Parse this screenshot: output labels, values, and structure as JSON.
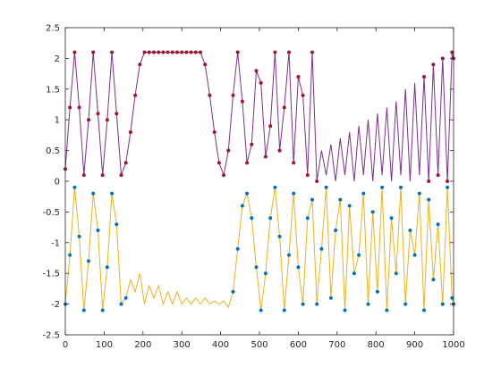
{
  "chart_data": {
    "type": "line",
    "title": "",
    "xlabel": "",
    "ylabel": "",
    "xlim": [
      0,
      1000
    ],
    "ylim": [
      -2.5,
      2.5
    ],
    "grid": false,
    "legend": "none",
    "xticks": [
      0,
      100,
      200,
      300,
      400,
      500,
      600,
      700,
      800,
      900,
      1000
    ],
    "xtick_labels": [
      "0",
      "100",
      "200",
      "300",
      "400",
      "500",
      "600",
      "700",
      "800",
      "900",
      "1000"
    ],
    "yticks": [
      2.5,
      2,
      1.5,
      1,
      0.5,
      0,
      -0.5,
      -1,
      -1.5,
      -2,
      -2.5
    ],
    "ytick_labels": [
      "2.5",
      "2",
      "1.5",
      "1",
      "0.5",
      "0",
      "-0.5",
      "-1",
      "-1.5",
      "-2",
      "-2.5"
    ],
    "colors": {
      "upper_line": "#7e2f8e",
      "upper_markers": "#a2142f",
      "lower_line": "#edb120",
      "lower_markers": "#0072bd",
      "axes": "#262626"
    },
    "series": [
      {
        "style": "line",
        "color": "#7e2f8e",
        "x": [
          0,
          12,
          24,
          36,
          48,
          60,
          72,
          84,
          96,
          108,
          120,
          132,
          144,
          156,
          168,
          180,
          192,
          204,
          216,
          228,
          240,
          252,
          264,
          276,
          288,
          300,
          312,
          324,
          336,
          348,
          360,
          372,
          384,
          396,
          408,
          420,
          432,
          444,
          456,
          468,
          480,
          492,
          504,
          516,
          528,
          540,
          552,
          564,
          576,
          588,
          600,
          612,
          624,
          636,
          648,
          660,
          672,
          684,
          696,
          708,
          720,
          732,
          744,
          756,
          768,
          780,
          792,
          804,
          816,
          828,
          840,
          852,
          864,
          876,
          888,
          900,
          912,
          924,
          936,
          948,
          960,
          972,
          984,
          996,
          1000
        ],
        "y": [
          0.2,
          1.2,
          2.1,
          1.2,
          0.1,
          1.0,
          2.1,
          1.1,
          0.1,
          1.0,
          2.1,
          1.1,
          0.1,
          0.3,
          0.8,
          1.4,
          1.9,
          2.1,
          2.1,
          2.1,
          2.1,
          2.1,
          2.1,
          2.1,
          2.1,
          2.1,
          2.1,
          2.1,
          2.1,
          2.1,
          1.9,
          1.4,
          0.8,
          0.3,
          0.1,
          0.5,
          1.4,
          2.1,
          1.3,
          0.3,
          0.6,
          1.8,
          1.6,
          0.4,
          0.9,
          2.1,
          0.5,
          1.2,
          2.1,
          0.3,
          1.7,
          1.4,
          0.1,
          2.1,
          0.0,
          0.5,
          0.1,
          0.6,
          0.0,
          0.7,
          0.1,
          0.8,
          0.0,
          0.9,
          0.1,
          1.0,
          0.0,
          1.1,
          0.1,
          1.2,
          0.0,
          1.3,
          0.1,
          1.5,
          0.0,
          1.6,
          0.1,
          1.7,
          0.0,
          1.9,
          0.1,
          2.0,
          0.0,
          2.1,
          2.0
        ]
      },
      {
        "style": "markers",
        "color": "#a2142f",
        "x": [
          0,
          12,
          24,
          36,
          48,
          60,
          72,
          84,
          96,
          108,
          120,
          132,
          144,
          156,
          168,
          180,
          192,
          204,
          216,
          228,
          240,
          252,
          264,
          276,
          288,
          300,
          312,
          324,
          336,
          348,
          360,
          372,
          384,
          396,
          408,
          420,
          432,
          444,
          456,
          468,
          480,
          492,
          504,
          516,
          528,
          540,
          552,
          564,
          576,
          588,
          600,
          612,
          624,
          636,
          648,
          924,
          936,
          948,
          960,
          972,
          984,
          996,
          1000
        ],
        "y": [
          0.2,
          1.2,
          2.1,
          1.2,
          0.1,
          1.0,
          2.1,
          1.1,
          0.1,
          1.0,
          2.1,
          1.1,
          0.1,
          0.3,
          0.8,
          1.4,
          1.9,
          2.1,
          2.1,
          2.1,
          2.1,
          2.1,
          2.1,
          2.1,
          2.1,
          2.1,
          2.1,
          2.1,
          2.1,
          2.1,
          1.9,
          1.4,
          0.8,
          0.3,
          0.1,
          0.5,
          1.4,
          2.1,
          1.3,
          0.3,
          0.6,
          1.8,
          1.6,
          0.4,
          0.9,
          2.1,
          0.5,
          1.2,
          2.1,
          0.3,
          1.7,
          1.4,
          0.1,
          2.1,
          0.0,
          1.7,
          0.0,
          1.9,
          0.1,
          2.0,
          0.0,
          2.1,
          2.0
        ]
      },
      {
        "style": "line",
        "color": "#edb120",
        "x": [
          0,
          12,
          24,
          36,
          48,
          60,
          72,
          84,
          96,
          108,
          120,
          132,
          144,
          156,
          168,
          180,
          192,
          204,
          216,
          228,
          240,
          252,
          264,
          276,
          288,
          300,
          312,
          324,
          336,
          348,
          360,
          372,
          384,
          396,
          408,
          420,
          432,
          444,
          456,
          468,
          480,
          492,
          504,
          516,
          528,
          540,
          552,
          564,
          576,
          588,
          600,
          612,
          624,
          636,
          648,
          660,
          672,
          684,
          696,
          708,
          720,
          732,
          744,
          756,
          768,
          780,
          792,
          804,
          816,
          828,
          840,
          852,
          864,
          876,
          888,
          900,
          912,
          924,
          936,
          948,
          960,
          972,
          984,
          996,
          1000
        ],
        "y": [
          -2.0,
          -1.2,
          -0.1,
          -0.9,
          -2.1,
          -1.3,
          -0.2,
          -0.8,
          -2.1,
          -1.4,
          -0.2,
          -0.7,
          -2.0,
          -1.9,
          -1.6,
          -1.8,
          -1.5,
          -2.0,
          -1.7,
          -1.9,
          -1.7,
          -2.0,
          -1.8,
          -2.0,
          -1.8,
          -2.0,
          -1.9,
          -2.0,
          -1.9,
          -2.0,
          -1.9,
          -2.0,
          -1.95,
          -2.0,
          -1.95,
          -2.05,
          -1.8,
          -1.1,
          -0.4,
          -0.2,
          -0.6,
          -1.4,
          -2.1,
          -1.5,
          -0.6,
          -0.1,
          -0.9,
          -2.1,
          -1.2,
          -0.2,
          -1.4,
          -2.0,
          -0.6,
          -0.3,
          -2.0,
          -1.1,
          -0.1,
          -1.9,
          -0.8,
          -0.3,
          -2.1,
          -0.4,
          -1.5,
          -1.2,
          -0.2,
          -2.0,
          -0.5,
          -1.8,
          -0.1,
          -2.1,
          -0.6,
          -1.5,
          -0.1,
          -2.0,
          -0.8,
          -1.2,
          -0.2,
          -2.1,
          -0.3,
          -1.6,
          -0.7,
          -2.0,
          -0.1,
          -1.9,
          -2.0
        ]
      },
      {
        "style": "markers",
        "color": "#0072bd",
        "x": [
          0,
          12,
          24,
          36,
          48,
          60,
          72,
          84,
          96,
          108,
          120,
          132,
          144,
          156,
          432,
          444,
          456,
          468,
          480,
          492,
          504,
          516,
          528,
          540,
          552,
          564,
          576,
          588,
          600,
          612,
          624,
          636,
          648,
          660,
          672,
          684,
          696,
          708,
          720,
          732,
          744,
          756,
          768,
          780,
          792,
          804,
          816,
          828,
          840,
          852,
          864,
          876,
          888,
          900,
          912,
          924,
          936,
          948,
          960,
          972,
          984,
          996,
          1000
        ],
        "y": [
          -2.0,
          -1.2,
          -0.1,
          -0.9,
          -2.1,
          -1.3,
          -0.2,
          -0.8,
          -2.1,
          -1.4,
          -0.2,
          -0.7,
          -2.0,
          -1.9,
          -1.8,
          -1.1,
          -0.4,
          -0.2,
          -0.6,
          -1.4,
          -2.1,
          -1.5,
          -0.6,
          -0.1,
          -0.9,
          -2.1,
          -1.2,
          -0.2,
          -1.4,
          -2.0,
          -0.6,
          -0.3,
          -2.0,
          -1.1,
          -0.1,
          -1.9,
          -0.8,
          -0.3,
          -2.1,
          -0.4,
          -1.5,
          -1.2,
          -0.2,
          -2.0,
          -0.5,
          -1.8,
          -0.1,
          -2.1,
          -0.6,
          -1.5,
          -0.1,
          -2.0,
          -0.8,
          -1.2,
          -0.2,
          -2.1,
          -0.3,
          -1.6,
          -0.7,
          -2.0,
          -0.1,
          -1.9,
          -2.0
        ]
      }
    ]
  }
}
